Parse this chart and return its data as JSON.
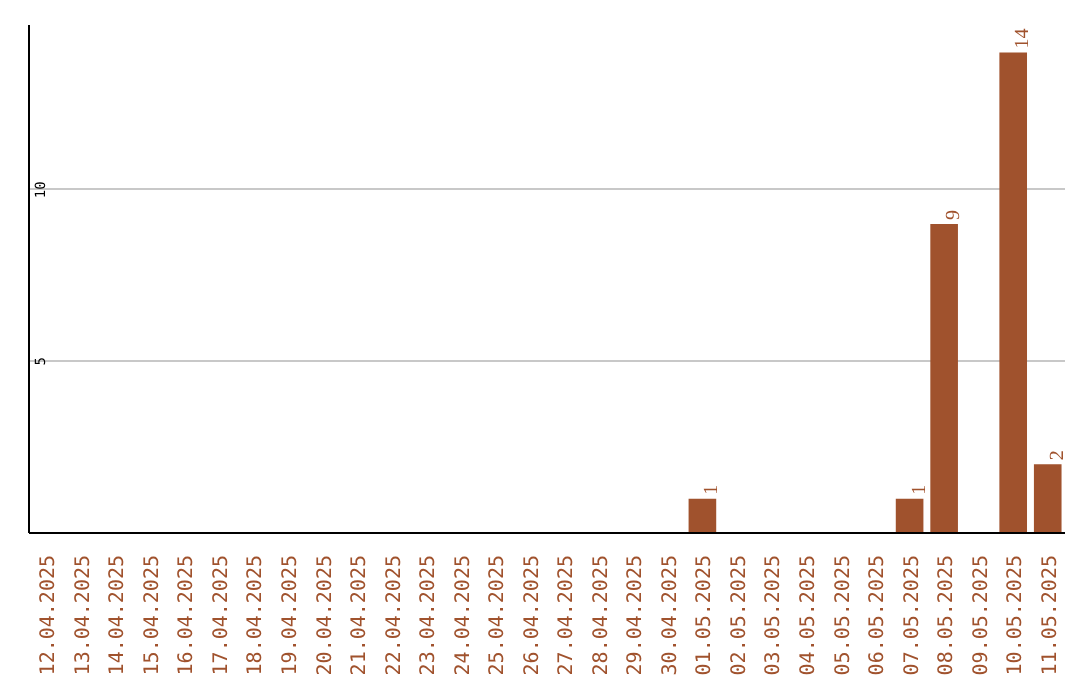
{
  "chart_data": {
    "type": "bar",
    "categories": [
      "12.04.2025",
      "13.04.2025",
      "14.04.2025",
      "15.04.2025",
      "16.04.2025",
      "17.04.2025",
      "18.04.2025",
      "19.04.2025",
      "20.04.2025",
      "21.04.2025",
      "22.04.2025",
      "23.04.2025",
      "24.04.2025",
      "25.04.2025",
      "26.04.2025",
      "27.04.2025",
      "28.04.2025",
      "29.04.2025",
      "30.04.2025",
      "01.05.2025",
      "02.05.2025",
      "03.05.2025",
      "04.05.2025",
      "05.05.2025",
      "06.05.2025",
      "07.05.2025",
      "08.05.2025",
      "09.05.2025",
      "10.05.2025",
      "11.05.2025"
    ],
    "values": [
      0,
      0,
      0,
      0,
      0,
      0,
      0,
      0,
      0,
      0,
      0,
      0,
      0,
      0,
      0,
      0,
      0,
      0,
      0,
      1,
      0,
      0,
      0,
      0,
      0,
      1,
      9,
      0,
      14,
      2
    ],
    "value_labels": [
      null,
      null,
      null,
      null,
      null,
      null,
      null,
      null,
      null,
      null,
      null,
      null,
      null,
      null,
      null,
      null,
      null,
      null,
      null,
      "1",
      null,
      null,
      null,
      null,
      null,
      "1",
      "9",
      null,
      "14",
      "2"
    ],
    "color": "#a0522d",
    "ylim": [
      0,
      14.8
    ],
    "yticks": [
      5,
      10
    ],
    "grid": "y"
  }
}
